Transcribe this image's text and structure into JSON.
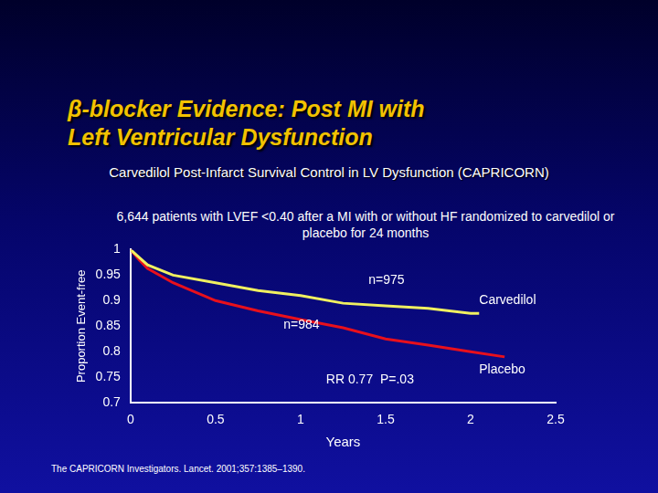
{
  "chart_data": {
    "type": "line",
    "title": [
      "β-blocker Evidence: Post MI with",
      "Left Ventricular Dysfunction"
    ],
    "subtitle": "Carvedilol Post-Infarct Survival Control in LV Dysfunction (CAPRICORN)",
    "description": "6,644 patients with LVEF <0.40 after a MI with or without HF randomized to carvedilol or placebo for 24 months",
    "source": "The CAPRICORN Investigators. Lancet. 2001;357:1385–1390.",
    "x_label": "Years",
    "y_label": "Proportion Event-free",
    "xlim": [
      0,
      2.5
    ],
    "xticks": [
      0,
      0.5,
      1,
      1.5,
      2,
      2.5
    ],
    "ylim": [
      0.7,
      1
    ],
    "yticks": [
      0.7,
      0.75,
      0.8,
      0.85,
      0.9,
      0.95,
      1
    ],
    "grid": false,
    "series": [
      {
        "name": "Carvedilol",
        "color": "#f0f060",
        "x": [
          0,
          0.05,
          0.1,
          0.25,
          0.5,
          0.75,
          1,
          1.25,
          1.5,
          1.75,
          2,
          2.05
        ],
        "values": [
          1,
          0.985,
          0.97,
          0.95,
          0.935,
          0.92,
          0.91,
          0.895,
          0.89,
          0.885,
          0.875,
          0.875
        ]
      },
      {
        "name": "Placebo",
        "color": "#e8101c",
        "x": [
          0,
          0.05,
          0.1,
          0.25,
          0.5,
          0.75,
          1,
          1.25,
          1.5,
          1.75,
          2,
          2.2
        ],
        "values": [
          1,
          0.98,
          0.963,
          0.935,
          0.9,
          0.88,
          0.863,
          0.847,
          0.825,
          0.813,
          0.8,
          0.79
        ]
      }
    ],
    "annotations": [
      {
        "text": "n=975",
        "x": 1.4,
        "y": 0.94
      },
      {
        "text": "n=984",
        "x": 0.9,
        "y": 0.852
      },
      {
        "text": "Carvedilol",
        "x": 2.05,
        "y": 0.9
      },
      {
        "text": "Placebo",
        "x": 2.05,
        "y": 0.765
      },
      {
        "text": "RR 0.77  P=.03",
        "x": 1.15,
        "y": 0.745
      }
    ]
  }
}
